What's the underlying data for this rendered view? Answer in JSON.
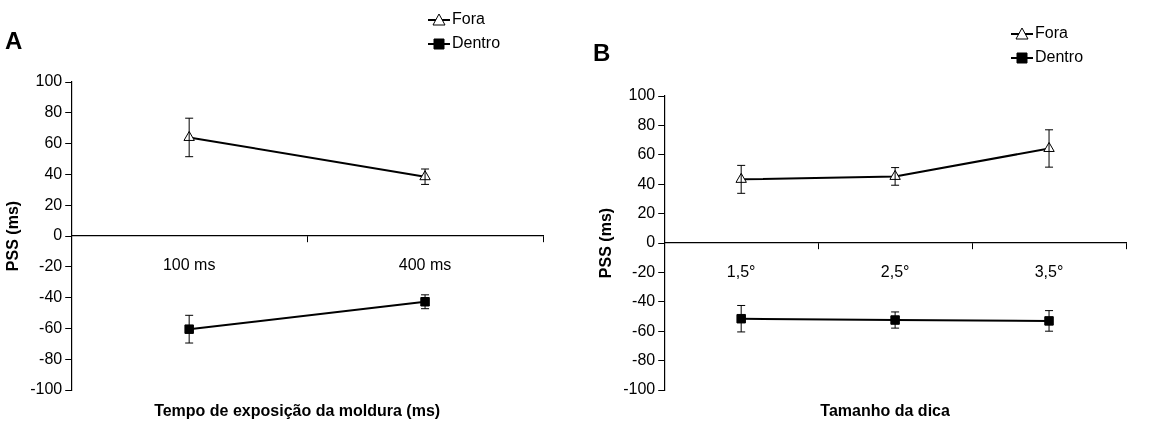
{
  "chart_data": [
    {
      "type": "line",
      "title": "A",
      "xlabel": "Tempo de exposição da moldura (ms)",
      "ylabel": "PSS (ms)",
      "categories": [
        "100 ms",
        "400 ms"
      ],
      "series": [
        {
          "name": "Fora",
          "color": "#000000",
          "marker": "triangle",
          "values": [
            64,
            38.5
          ],
          "errors": [
            12.5,
            5
          ]
        },
        {
          "name": "Dentro",
          "color": "#000000",
          "marker": "square",
          "values": [
            -60.5,
            -42.7
          ],
          "errors": [
            9,
            4.5
          ]
        }
      ],
      "ylim": [
        -100,
        100
      ],
      "yticks": [
        -100,
        -80,
        -60,
        -40,
        -20,
        0,
        20,
        40,
        60,
        80,
        100
      ],
      "grid": false,
      "legend": "top right"
    },
    {
      "type": "line",
      "title": "B",
      "xlabel": "Tamanho da dica",
      "ylabel": "PSS (ms)",
      "categories": [
        "1,5°",
        "2,5°",
        "3,5°"
      ],
      "series": [
        {
          "name": "Fora",
          "color": "#000000",
          "marker": "triangle",
          "values": [
            43.3,
            45.3,
            64.3
          ],
          "errors": [
            9.5,
            6,
            12.7
          ]
        },
        {
          "name": "Dentro",
          "color": "#000000",
          "marker": "square",
          "values": [
            -51.5,
            -52.4,
            -53
          ],
          "errors": [
            9,
            5.5,
            7
          ]
        }
      ],
      "ylim": [
        -100,
        100
      ],
      "yticks": [
        -100,
        -80,
        -60,
        -40,
        -20,
        0,
        20,
        40,
        60,
        80,
        100
      ],
      "grid": false,
      "legend": "top right"
    }
  ]
}
